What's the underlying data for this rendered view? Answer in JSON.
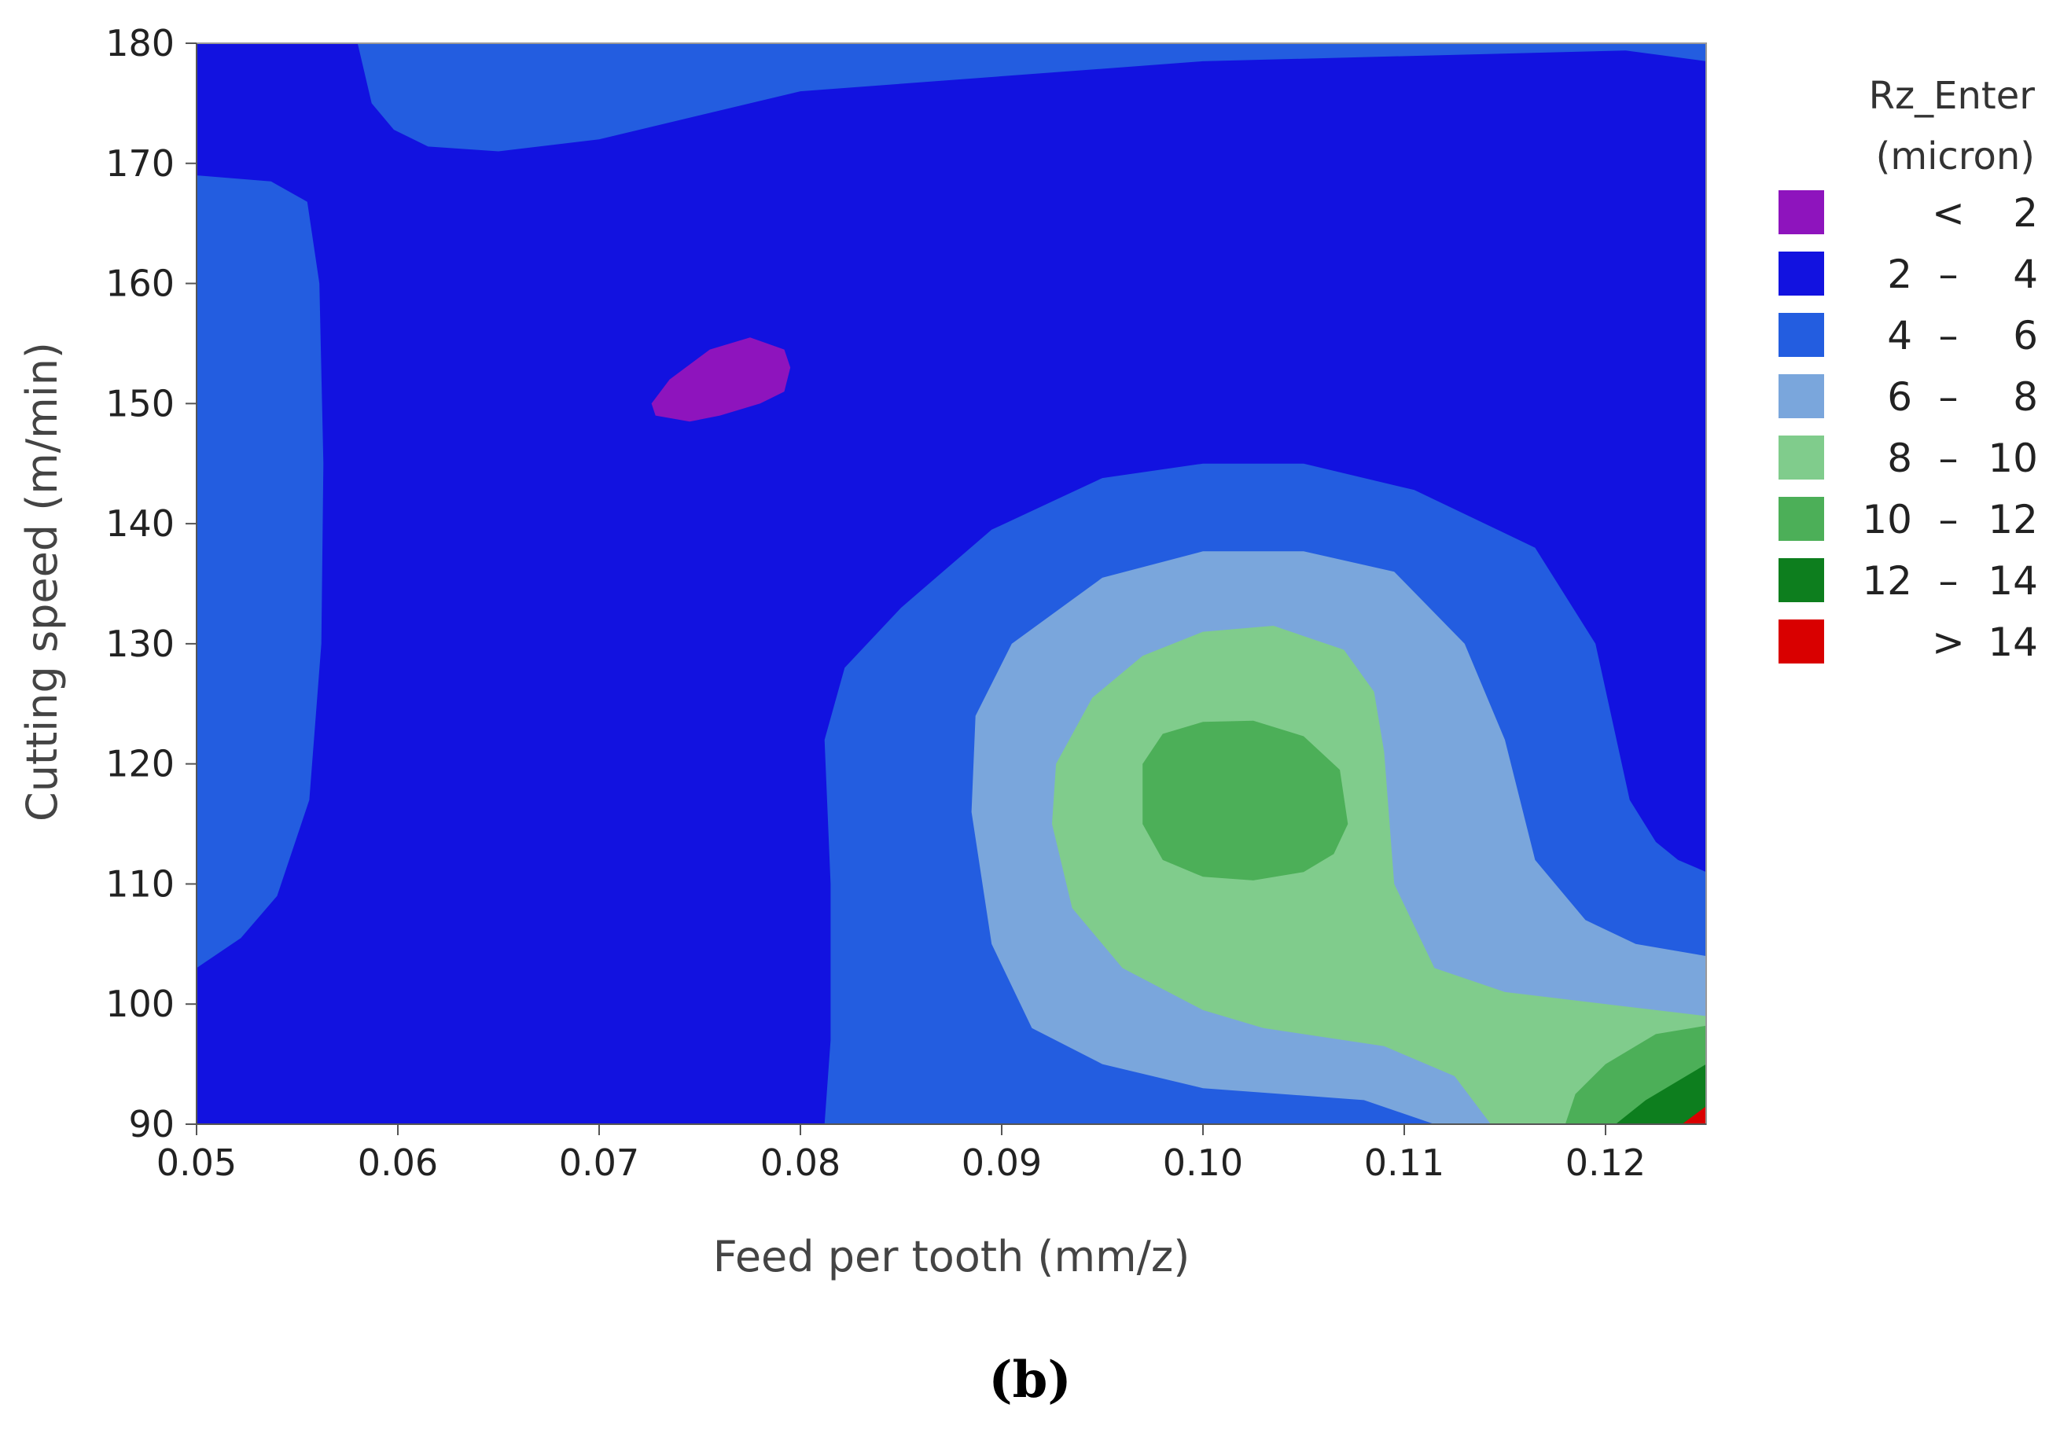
{
  "chart_data": {
    "type": "contour",
    "title": "",
    "xlabel": "Feed per tooth (mm/z)",
    "ylabel": "Cutting speed (m/min)",
    "xlim": [
      0.05,
      0.125
    ],
    "ylim": [
      90,
      180
    ],
    "x_ticks": [
      "0.05",
      "0.06",
      "0.07",
      "0.08",
      "0.09",
      "0.10",
      "0.11",
      "0.12"
    ],
    "y_ticks": [
      "90",
      "100",
      "110",
      "120",
      "130",
      "140",
      "150",
      "160",
      "170",
      "180"
    ],
    "legend_title": [
      "Rz_Enter",
      "(micron)"
    ],
    "legend_position": "right",
    "levels": [
      {
        "label_left": "",
        "sep": "<",
        "label_right": "2",
        "color": "#8e14bd"
      },
      {
        "label_left": "2",
        "sep": "–",
        "label_right": "4",
        "color": "#1212e0"
      },
      {
        "label_left": "4",
        "sep": "–",
        "label_right": "6",
        "color": "#235de0"
      },
      {
        "label_left": "6",
        "sep": "–",
        "label_right": "8",
        "color": "#7aa6dc"
      },
      {
        "label_left": "8",
        "sep": "–",
        "label_right": "10",
        "color": "#80cc8c"
      },
      {
        "label_left": "10",
        "sep": "–",
        "label_right": "12",
        "color": "#4caf58"
      },
      {
        "label_left": "12",
        "sep": "–",
        "label_right": "14",
        "color": "#0d7e1e"
      },
      {
        "label_left": "",
        "sep": ">",
        "label_right": "14",
        "color": "#d90000"
      }
    ],
    "regions": [
      {
        "name": "band-4-6-left",
        "level": 2,
        "points": [
          [
            0.05,
            169
          ],
          [
            0.0537,
            168.5
          ],
          [
            0.0555,
            166.8
          ],
          [
            0.0561,
            160
          ],
          [
            0.0563,
            145
          ],
          [
            0.0562,
            130
          ],
          [
            0.0556,
            117
          ],
          [
            0.054,
            109
          ],
          [
            0.0522,
            105.5
          ],
          [
            0.05,
            103
          ]
        ]
      },
      {
        "name": "band-4-6-top",
        "level": 2,
        "points": [
          [
            0.058,
            180
          ],
          [
            0.125,
            180
          ],
          [
            0.125,
            178.5
          ],
          [
            0.121,
            179.4
          ],
          [
            0.1,
            178.5
          ],
          [
            0.08,
            176
          ],
          [
            0.07,
            172
          ],
          [
            0.065,
            171
          ],
          [
            0.0615,
            171.4
          ],
          [
            0.0598,
            172.8
          ],
          [
            0.0587,
            175
          ],
          [
            0.058,
            180
          ]
        ]
      },
      {
        "name": "band-4-6-lower",
        "level": 2,
        "points": [
          [
            0.0812,
            90
          ],
          [
            0.0815,
            97
          ],
          [
            0.0815,
            110
          ],
          [
            0.0812,
            122
          ],
          [
            0.0822,
            128
          ],
          [
            0.085,
            133
          ],
          [
            0.0895,
            139.5
          ],
          [
            0.095,
            143.8
          ],
          [
            0.1,
            145
          ],
          [
            0.105,
            145
          ],
          [
            0.1105,
            142.8
          ],
          [
            0.1165,
            138
          ],
          [
            0.1195,
            130
          ],
          [
            0.1212,
            117
          ],
          [
            0.1225,
            113.5
          ],
          [
            0.1236,
            112
          ],
          [
            0.125,
            111
          ],
          [
            0.125,
            90
          ]
        ]
      },
      {
        "name": "band-6-8",
        "level": 3,
        "points": [
          [
            0.1115,
            90
          ],
          [
            0.108,
            92
          ],
          [
            0.1,
            93
          ],
          [
            0.095,
            95
          ],
          [
            0.0915,
            98
          ],
          [
            0.0895,
            105
          ],
          [
            0.0885,
            116
          ],
          [
            0.0887,
            124
          ],
          [
            0.0905,
            130
          ],
          [
            0.095,
            135.5
          ],
          [
            0.1,
            137.7
          ],
          [
            0.105,
            137.7
          ],
          [
            0.1095,
            136
          ],
          [
            0.113,
            130
          ],
          [
            0.115,
            122
          ],
          [
            0.1165,
            112
          ],
          [
            0.119,
            107
          ],
          [
            0.1215,
            105
          ],
          [
            0.125,
            104
          ],
          [
            0.125,
            90
          ]
        ]
      },
      {
        "name": "band-8-10",
        "level": 4,
        "points": [
          [
            0.1143,
            90
          ],
          [
            0.1125,
            94
          ],
          [
            0.109,
            96.5
          ],
          [
            0.103,
            98
          ],
          [
            0.1,
            99.5
          ],
          [
            0.096,
            103
          ],
          [
            0.0935,
            108
          ],
          [
            0.0925,
            115
          ],
          [
            0.0927,
            120
          ],
          [
            0.0945,
            125.5
          ],
          [
            0.097,
            129
          ],
          [
            0.1,
            131
          ],
          [
            0.1035,
            131.5
          ],
          [
            0.107,
            129.5
          ],
          [
            0.1085,
            126
          ],
          [
            0.109,
            121
          ],
          [
            0.1095,
            110
          ],
          [
            0.1115,
            103
          ],
          [
            0.115,
            101
          ],
          [
            0.12,
            100
          ],
          [
            0.125,
            99
          ],
          [
            0.125,
            90
          ]
        ]
      },
      {
        "name": "band-10-12-center",
        "level": 5,
        "points": [
          [
            0.097,
            120
          ],
          [
            0.098,
            122.5
          ],
          [
            0.1,
            123.5
          ],
          [
            0.1025,
            123.6
          ],
          [
            0.105,
            122.3
          ],
          [
            0.1068,
            119.5
          ],
          [
            0.1072,
            115
          ],
          [
            0.1065,
            112.5
          ],
          [
            0.105,
            111
          ],
          [
            0.1025,
            110.3
          ],
          [
            0.1,
            110.6
          ],
          [
            0.098,
            112
          ],
          [
            0.097,
            115
          ]
        ]
      },
      {
        "name": "band-10-12-corner",
        "level": 5,
        "points": [
          [
            0.118,
            90
          ],
          [
            0.1185,
            92.5
          ],
          [
            0.12,
            95
          ],
          [
            0.1225,
            97.5
          ],
          [
            0.125,
            98.2
          ],
          [
            0.125,
            90
          ]
        ]
      },
      {
        "name": "band-12-14",
        "level": 6,
        "points": [
          [
            0.1205,
            90
          ],
          [
            0.122,
            92
          ],
          [
            0.124,
            94
          ],
          [
            0.125,
            95
          ],
          [
            0.125,
            90
          ]
        ]
      },
      {
        "name": "band-gt-14",
        "level": 7,
        "points": [
          [
            0.1238,
            90
          ],
          [
            0.1246,
            91
          ],
          [
            0.125,
            91.5
          ],
          [
            0.125,
            90
          ]
        ]
      },
      {
        "name": "band-lt-2",
        "level": 0,
        "points": [
          [
            0.0726,
            150
          ],
          [
            0.0735,
            152
          ],
          [
            0.0755,
            154.5
          ],
          [
            0.0775,
            155.5
          ],
          [
            0.0792,
            154.5
          ],
          [
            0.0795,
            153
          ],
          [
            0.0792,
            151
          ],
          [
            0.078,
            150
          ],
          [
            0.076,
            149
          ],
          [
            0.0745,
            148.5
          ],
          [
            0.0728,
            149
          ]
        ]
      }
    ]
  },
  "panel_label": "(b)"
}
